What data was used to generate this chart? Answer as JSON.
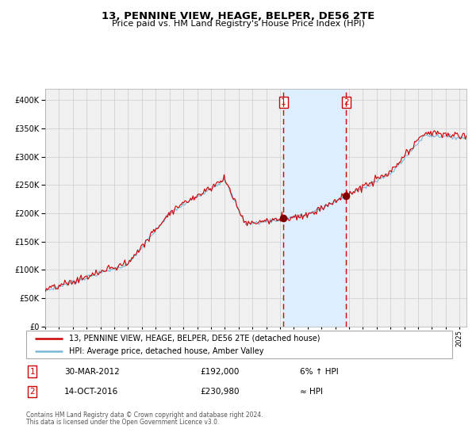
{
  "title": "13, PENNINE VIEW, HEAGE, BELPER, DE56 2TE",
  "subtitle": "Price paid vs. HM Land Registry's House Price Index (HPI)",
  "legend_line1": "13, PENNINE VIEW, HEAGE, BELPER, DE56 2TE (detached house)",
  "legend_line2": "HPI: Average price, detached house, Amber Valley",
  "sale1_date": "30-MAR-2012",
  "sale1_price": "£192,000",
  "sale1_hpi": "6% ↑ HPI",
  "sale2_date": "14-OCT-2016",
  "sale2_price": "£230,980",
  "sale2_hpi": "≈ HPI",
  "footer1": "Contains HM Land Registry data © Crown copyright and database right 2024.",
  "footer2": "This data is licensed under the Open Government Licence v3.0.",
  "hpi_color": "#7ab8d9",
  "price_color": "#cc0000",
  "sale_dot_color": "#800000",
  "vline_color": "#cc0000",
  "shading_color": "#ddeeff",
  "ylim": [
    0,
    420000
  ],
  "yticks": [
    0,
    50000,
    100000,
    150000,
    200000,
    250000,
    300000,
    350000,
    400000
  ],
  "xlim_start": 1995.0,
  "xlim_end": 2025.5,
  "sale1_x": 2012.25,
  "sale1_y": 192000,
  "sale2_x": 2016.79,
  "sale2_y": 230980,
  "shade_x1": 2012.25,
  "shade_x2": 2016.79,
  "grid_color": "#cccccc",
  "box_color": "#cc0000",
  "chart_bg": "#f0f0f0"
}
